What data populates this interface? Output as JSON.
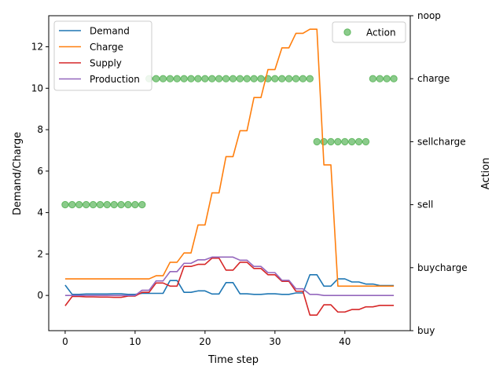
{
  "chart_data": {
    "type": "line",
    "xlabel": "Time step",
    "ylabel_left": "Demand/Charge",
    "ylabel_right": "Action",
    "xlim": [
      -2.35,
      49.35
    ],
    "ylim_left": [
      -1.7,
      13.5
    ],
    "x_ticks": [
      0,
      10,
      20,
      30,
      40
    ],
    "y_ticks_left": [
      0,
      2,
      4,
      6,
      8,
      10,
      12
    ],
    "action_levels": [
      "buy",
      "buycharge",
      "sell",
      "sellcharge",
      "charge",
      "noop"
    ],
    "grid": false,
    "legend_left_position": "upper-left",
    "legend_right_position": "upper-right",
    "series": [
      {
        "name": "Demand",
        "color": "#1f77b4",
        "values": [
          0.5,
          0.05,
          0.05,
          0.07,
          0.07,
          0.07,
          0.07,
          0.08,
          0.08,
          0.05,
          0.05,
          0.1,
          0.1,
          0.1,
          0.1,
          0.72,
          0.72,
          0.15,
          0.15,
          0.22,
          0.22,
          0.07,
          0.07,
          0.62,
          0.62,
          0.08,
          0.08,
          0.05,
          0.05,
          0.08,
          0.08,
          0.05,
          0.05,
          0.12,
          0.12,
          1.0,
          1.0,
          0.45,
          0.45,
          0.8,
          0.8,
          0.65,
          0.65,
          0.55,
          0.55,
          0.48,
          0.48,
          0.48
        ]
      },
      {
        "name": "Charge",
        "color": "#ff7f0e",
        "values": [
          0.8,
          0.8,
          0.8,
          0.8,
          0.8,
          0.8,
          0.8,
          0.8,
          0.8,
          0.8,
          0.8,
          0.8,
          0.8,
          0.95,
          0.95,
          1.6,
          1.6,
          2.05,
          2.05,
          3.4,
          3.4,
          4.95,
          4.95,
          6.7,
          6.7,
          7.95,
          7.95,
          9.55,
          9.55,
          10.9,
          10.9,
          11.95,
          11.95,
          12.65,
          12.65,
          12.85,
          12.85,
          6.3,
          6.3,
          0.45,
          0.45,
          0.45,
          0.45,
          0.45,
          0.45,
          0.45,
          0.45,
          0.45
        ]
      },
      {
        "name": "Supply",
        "color": "#d62728",
        "values": [
          -0.5,
          -0.05,
          -0.05,
          -0.07,
          -0.07,
          -0.08,
          -0.08,
          -0.09,
          -0.09,
          -0.03,
          -0.03,
          0.15,
          0.15,
          0.6,
          0.6,
          0.45,
          0.45,
          1.4,
          1.4,
          1.5,
          1.5,
          1.8,
          1.8,
          1.22,
          1.22,
          1.6,
          1.6,
          1.3,
          1.3,
          1.0,
          1.0,
          0.68,
          0.68,
          0.2,
          0.2,
          -0.95,
          -0.95,
          -0.45,
          -0.45,
          -0.8,
          -0.8,
          -0.68,
          -0.68,
          -0.55,
          -0.55,
          -0.48,
          -0.48,
          -0.48
        ]
      },
      {
        "name": "Production",
        "color": "#9467bd",
        "values": [
          0.0,
          0.0,
          0.0,
          0.0,
          0.0,
          0.0,
          0.0,
          0.0,
          0.0,
          0.0,
          0.0,
          0.25,
          0.25,
          0.7,
          0.7,
          1.15,
          1.15,
          1.55,
          1.55,
          1.72,
          1.72,
          1.85,
          1.85,
          1.85,
          1.85,
          1.7,
          1.7,
          1.4,
          1.4,
          1.1,
          1.1,
          0.73,
          0.73,
          0.32,
          0.32,
          0.05,
          0.05,
          0.0,
          0.0,
          0.0,
          0.0,
          0.0,
          0.0,
          0.0,
          0.0,
          0.0,
          0.0,
          0.0
        ]
      }
    ],
    "action_series": {
      "name": "Action",
      "color": "#2ca02c",
      "x": [
        0,
        1,
        2,
        3,
        4,
        5,
        6,
        7,
        8,
        9,
        10,
        11,
        12,
        13,
        14,
        15,
        16,
        17,
        18,
        19,
        20,
        21,
        22,
        23,
        24,
        25,
        26,
        27,
        28,
        29,
        30,
        31,
        32,
        33,
        34,
        35,
        36,
        37,
        38,
        39,
        40,
        41,
        42,
        43,
        44,
        45,
        46,
        47
      ],
      "values": [
        "sell",
        "sell",
        "sell",
        "sell",
        "sell",
        "sell",
        "sell",
        "sell",
        "sell",
        "sell",
        "sell",
        "sell",
        "charge",
        "charge",
        "charge",
        "charge",
        "charge",
        "charge",
        "charge",
        "charge",
        "charge",
        "charge",
        "charge",
        "charge",
        "charge",
        "charge",
        "charge",
        "charge",
        "charge",
        "charge",
        "charge",
        "charge",
        "charge",
        "charge",
        "charge",
        "charge",
        "sellcharge",
        "sellcharge",
        "sellcharge",
        "sellcharge",
        "sellcharge",
        "sellcharge",
        "sellcharge",
        "sellcharge",
        "charge",
        "charge",
        "charge",
        "charge"
      ]
    }
  }
}
